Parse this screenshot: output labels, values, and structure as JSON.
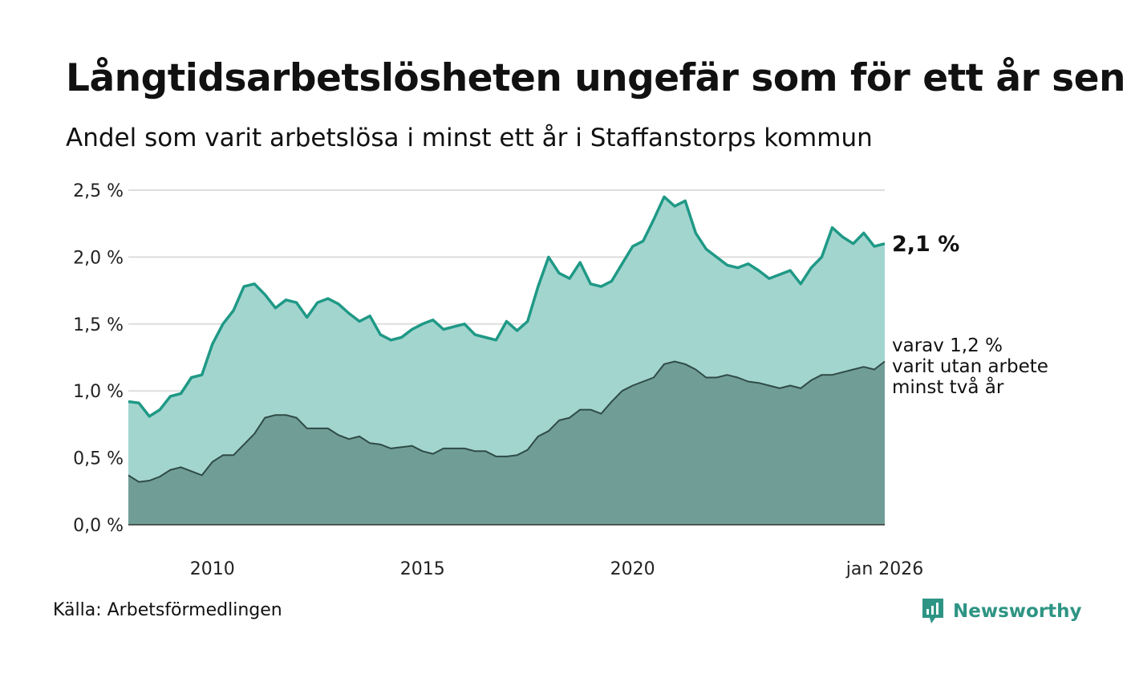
{
  "title": "Långtidsarbetslösheten ungefär som för ett år sen",
  "subtitle": "Andel som varit arbetslösa i minst ett år i Staffanstorps kommun",
  "source": "Källa: Arbetsförmedlingen",
  "brand": "Newsworthy",
  "colors": {
    "total_fill": "#a3d5cf",
    "total_line": "#1f9986",
    "sub_fill": "#709e97",
    "sub_line": "#2f4b47",
    "grid": "#dddddd"
  },
  "chart_data": {
    "type": "area",
    "title": "Andel som varit arbetslösa i minst ett år i Staffanstorps kommun",
    "xlabel": "",
    "ylabel": "",
    "ylim": [
      0,
      2.5
    ],
    "xlim": [
      2008.0,
      2026.0
    ],
    "y_ticks": [
      0,
      0.5,
      1.0,
      1.5,
      2.0,
      2.5
    ],
    "y_tick_labels": [
      "0,0 %",
      "0,5 %",
      "1,0 %",
      "1,5 %",
      "2,0 %",
      "2,5 %"
    ],
    "x_ticks": [
      2010,
      2015,
      2020,
      2026
    ],
    "x_tick_labels": [
      "2010",
      "2015",
      "2020",
      "jan 2026"
    ],
    "series": [
      {
        "name": "Minst ett år",
        "end_label": "2,1 %",
        "x": [
          2008.0,
          2008.25,
          2008.5,
          2008.75,
          2009.0,
          2009.25,
          2009.5,
          2009.75,
          2010.0,
          2010.25,
          2010.5,
          2010.75,
          2011.0,
          2011.25,
          2011.5,
          2011.75,
          2012.0,
          2012.25,
          2012.5,
          2012.75,
          2013.0,
          2013.25,
          2013.5,
          2013.75,
          2014.0,
          2014.25,
          2014.5,
          2014.75,
          2015.0,
          2015.25,
          2015.5,
          2015.75,
          2016.0,
          2016.25,
          2016.5,
          2016.75,
          2017.0,
          2017.25,
          2017.5,
          2017.75,
          2018.0,
          2018.25,
          2018.5,
          2018.75,
          2019.0,
          2019.25,
          2019.5,
          2019.75,
          2020.0,
          2020.25,
          2020.5,
          2020.75,
          2021.0,
          2021.25,
          2021.5,
          2021.75,
          2022.0,
          2022.25,
          2022.5,
          2022.75,
          2023.0,
          2023.25,
          2023.5,
          2023.75,
          2024.0,
          2024.25,
          2024.5,
          2024.75,
          2025.0,
          2025.25,
          2025.5,
          2025.75,
          2026.0
        ],
        "values": [
          0.92,
          0.91,
          0.81,
          0.86,
          0.96,
          0.98,
          1.1,
          1.12,
          1.35,
          1.5,
          1.6,
          1.78,
          1.8,
          1.72,
          1.62,
          1.68,
          1.66,
          1.55,
          1.66,
          1.69,
          1.65,
          1.58,
          1.52,
          1.56,
          1.42,
          1.38,
          1.4,
          1.46,
          1.5,
          1.53,
          1.46,
          1.48,
          1.5,
          1.42,
          1.4,
          1.38,
          1.52,
          1.45,
          1.52,
          1.78,
          2.0,
          1.88,
          1.84,
          1.96,
          1.8,
          1.78,
          1.82,
          1.95,
          2.08,
          2.12,
          2.28,
          2.45,
          2.38,
          2.42,
          2.18,
          2.06,
          2.0,
          1.94,
          1.92,
          1.95,
          1.9,
          1.84,
          1.87,
          1.9,
          1.8,
          1.92,
          2.0,
          2.22,
          2.15,
          2.1,
          2.18,
          2.08,
          2.1
        ]
      },
      {
        "name": "Minst två år",
        "end_label_lines": [
          "varav 1,2 %",
          "varit utan arbete",
          "minst två år"
        ],
        "x": [
          2008.0,
          2008.25,
          2008.5,
          2008.75,
          2009.0,
          2009.25,
          2009.5,
          2009.75,
          2010.0,
          2010.25,
          2010.5,
          2010.75,
          2011.0,
          2011.25,
          2011.5,
          2011.75,
          2012.0,
          2012.25,
          2012.5,
          2012.75,
          2013.0,
          2013.25,
          2013.5,
          2013.75,
          2014.0,
          2014.25,
          2014.5,
          2014.75,
          2015.0,
          2015.25,
          2015.5,
          2015.75,
          2016.0,
          2016.25,
          2016.5,
          2016.75,
          2017.0,
          2017.25,
          2017.5,
          2017.75,
          2018.0,
          2018.25,
          2018.5,
          2018.75,
          2019.0,
          2019.25,
          2019.5,
          2019.75,
          2020.0,
          2020.25,
          2020.5,
          2020.75,
          2021.0,
          2021.25,
          2021.5,
          2021.75,
          2022.0,
          2022.25,
          2022.5,
          2022.75,
          2023.0,
          2023.25,
          2023.5,
          2023.75,
          2024.0,
          2024.25,
          2024.5,
          2024.75,
          2025.0,
          2025.25,
          2025.5,
          2025.75,
          2026.0
        ],
        "values": [
          0.37,
          0.32,
          0.33,
          0.36,
          0.41,
          0.43,
          0.4,
          0.37,
          0.47,
          0.52,
          0.52,
          0.6,
          0.68,
          0.8,
          0.82,
          0.82,
          0.8,
          0.72,
          0.72,
          0.72,
          0.67,
          0.64,
          0.66,
          0.61,
          0.6,
          0.57,
          0.58,
          0.59,
          0.55,
          0.53,
          0.57,
          0.57,
          0.57,
          0.55,
          0.55,
          0.51,
          0.51,
          0.52,
          0.56,
          0.66,
          0.7,
          0.78,
          0.8,
          0.86,
          0.86,
          0.83,
          0.92,
          1.0,
          1.04,
          1.07,
          1.1,
          1.2,
          1.22,
          1.2,
          1.16,
          1.1,
          1.1,
          1.12,
          1.1,
          1.07,
          1.06,
          1.04,
          1.02,
          1.04,
          1.02,
          1.08,
          1.12,
          1.12,
          1.14,
          1.16,
          1.18,
          1.16,
          1.22
        ]
      }
    ]
  }
}
